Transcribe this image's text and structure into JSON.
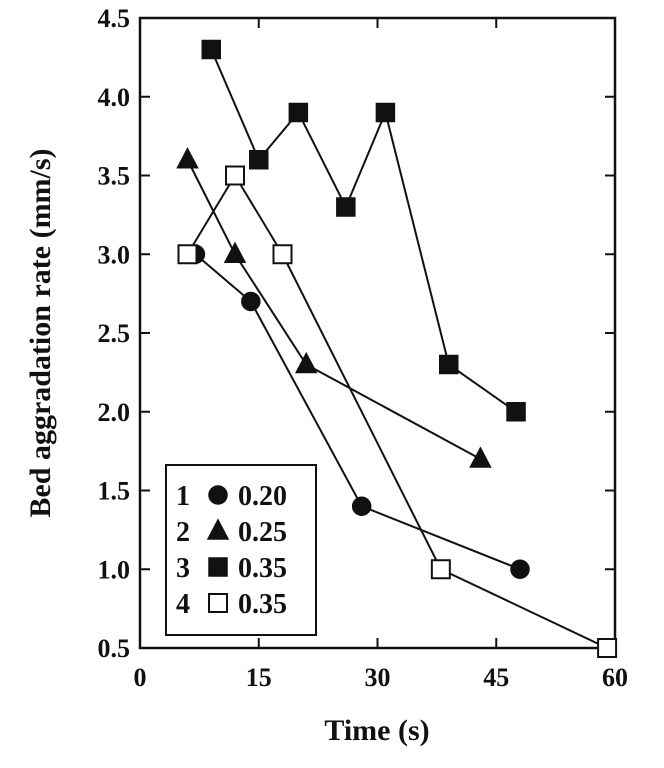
{
  "chart_data": {
    "type": "line",
    "xlabel": "Time (s)",
    "ylabel": "Bed aggradation rate (mm/s)",
    "xlim": [
      0,
      60
    ],
    "ylim": [
      0.5,
      4.5
    ],
    "xticks": [
      0,
      15,
      30,
      45,
      60
    ],
    "yticks": [
      0.5,
      1.0,
      1.5,
      2.0,
      2.5,
      3.0,
      3.5,
      4.0,
      4.5
    ],
    "ytick_labels": [
      "0.5",
      "1.0",
      "1.5",
      "2.0",
      "2.5",
      "3.0",
      "3.5",
      "4.0",
      "4.5"
    ],
    "grid": false,
    "legend_position": "bottom-left",
    "series": [
      {
        "name": "0.20",
        "id": "1",
        "marker": "circle-filled",
        "x": [
          7,
          14,
          28,
          48
        ],
        "y": [
          3.0,
          2.7,
          1.4,
          1.0
        ]
      },
      {
        "name": "0.25",
        "id": "2",
        "marker": "triangle-filled",
        "x": [
          6,
          12,
          21,
          43
        ],
        "y": [
          3.6,
          3.0,
          2.3,
          1.7
        ]
      },
      {
        "name": "0.35",
        "id": "3",
        "marker": "square-filled",
        "x": [
          9,
          15,
          20,
          26,
          31,
          39,
          47.5
        ],
        "y": [
          4.3,
          3.6,
          3.9,
          3.3,
          3.9,
          2.3,
          2.0
        ]
      },
      {
        "name": "0.35",
        "id": "4",
        "marker": "square-open",
        "x": [
          6,
          12,
          18,
          38,
          59
        ],
        "y": [
          3.0,
          3.5,
          3.0,
          1.0,
          0.5
        ]
      }
    ]
  }
}
